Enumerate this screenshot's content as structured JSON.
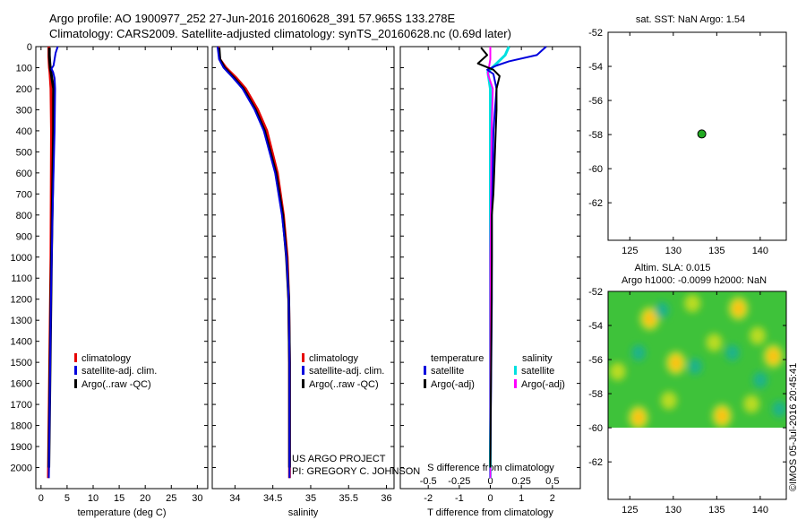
{
  "header": {
    "line1": "Argo profile: AO 1900977_252 27-Jun-2016 20160628_391 57.965S 133.278E",
    "line2": "Climatology: CARS2009. Satellite-adjusted climatology: synTS_20160628.nc (0.69d later)"
  },
  "credits": {
    "project": "US ARGO PROJECT",
    "pi": "PI: GREGORY C. JOHNSON"
  },
  "timestamp": "©IMOS 05-Jul-2016 20:45:41",
  "colors": {
    "clim": "#e60000",
    "sat": "#0000dd",
    "argo": "#000000",
    "sal_sat": "#00e0e0",
    "sal_argo": "#ff00ff",
    "marker": "#22aa22"
  },
  "chart_data": [
    {
      "type": "line",
      "id": "temperature",
      "xlabel": "temperature (deg C)",
      "ylabel": "",
      "xlim": [
        -1,
        32
      ],
      "ylim": [
        2100,
        0
      ],
      "xticks": [
        "0",
        "5",
        "10",
        "15",
        "20",
        "25",
        "30"
      ],
      "xtick_values": [
        0,
        5,
        10,
        15,
        20,
        25,
        30
      ],
      "yticks": [
        "0",
        "100",
        "200",
        "300",
        "400",
        "500",
        "600",
        "700",
        "800",
        "900",
        "1000",
        "1100",
        "1200",
        "1300",
        "1400",
        "1500",
        "1600",
        "1700",
        "1800",
        "1900",
        "2000"
      ],
      "ytick_values": [
        0,
        100,
        200,
        300,
        400,
        500,
        600,
        700,
        800,
        900,
        1000,
        1100,
        1200,
        1300,
        1400,
        1500,
        1600,
        1700,
        1800,
        1900,
        2000
      ],
      "legend": [
        "climatology",
        "satellite-adj. clim.",
        "Argo(..raw -QC)"
      ],
      "series": [
        {
          "name": "climatology",
          "depth": [
            0,
            50,
            100,
            120,
            200,
            400,
            1000,
            2050
          ],
          "values": [
            1.5,
            1.5,
            1.6,
            1.7,
            1.9,
            2.0,
            1.9,
            1.4
          ]
        },
        {
          "name": "Argo(..raw -QC)",
          "depth": [
            5,
            40,
            80,
            105,
            120,
            200,
            400,
            1000,
            2000
          ],
          "values": [
            1.6,
            1.6,
            1.7,
            1.8,
            1.9,
            2.4,
            2.4,
            2.0,
            1.5
          ]
        },
        {
          "name": "satellite-adj. clim.",
          "depth": [
            0,
            30,
            60,
            90,
            105,
            120,
            150,
            200,
            400,
            800,
            1200,
            2050
          ],
          "values": [
            3.2,
            2.8,
            2.6,
            2.4,
            2.0,
            2.3,
            2.6,
            2.7,
            2.6,
            2.2,
            1.9,
            1.5
          ]
        }
      ]
    },
    {
      "type": "line",
      "id": "salinity",
      "xlabel": "salinity",
      "xlim": [
        33.7,
        36.1
      ],
      "ylim": [
        2100,
        0
      ],
      "xticks": [
        "34",
        "34.5",
        "35",
        "35.5",
        "36"
      ],
      "xtick_values": [
        34,
        34.5,
        35,
        35.5,
        36
      ],
      "legend": [
        "climatology",
        "satellite-adj. clim.",
        "Argo(..raw -QC)"
      ],
      "series": [
        {
          "name": "climatology",
          "depth": [
            0,
            60,
            100,
            150,
            200,
            300,
            400,
            600,
            800,
            1000,
            1200,
            1500,
            2050
          ],
          "values": [
            33.78,
            33.8,
            33.88,
            34.02,
            34.14,
            34.3,
            34.42,
            34.56,
            34.64,
            34.69,
            34.71,
            34.72,
            34.72
          ]
        },
        {
          "name": "Argo(..raw -QC)",
          "depth": [
            5,
            60,
            100,
            150,
            200,
            300,
            400,
            600,
            800,
            1000,
            1200,
            1500,
            2000
          ],
          "values": [
            33.79,
            33.8,
            33.86,
            33.99,
            34.11,
            34.27,
            34.39,
            34.54,
            34.63,
            34.68,
            34.71,
            34.72,
            34.72
          ]
        },
        {
          "name": "satellite-adj. clim.",
          "depth": [
            0,
            60,
            100,
            150,
            200,
            300,
            400,
            600,
            800,
            1000,
            1200,
            1500,
            2050
          ],
          "values": [
            33.77,
            33.79,
            33.85,
            33.98,
            34.1,
            34.26,
            34.38,
            34.53,
            34.62,
            34.68,
            34.71,
            34.72,
            34.72
          ]
        }
      ]
    },
    {
      "type": "line",
      "id": "difference",
      "xlabel": "T difference from climatology",
      "top_label": "S difference from climatology",
      "xlim": [
        -2.9,
        2.9
      ],
      "ylim": [
        2100,
        0
      ],
      "xticks": [
        "-2",
        "-1",
        "0",
        "1",
        "2"
      ],
      "xtick_values": [
        -2,
        -1,
        0,
        1,
        2
      ],
      "top_ticks": [
        "-0.5",
        "-0.25",
        "0",
        "0.25",
        "0.5"
      ],
      "top_tick_values": [
        -0.5,
        -0.25,
        0,
        0.25,
        0.5
      ],
      "legend_temperature_title": "temperature",
      "legend_salinity_title": "salinity",
      "legend": [
        "satellite",
        "Argo(-adj)",
        "satellite",
        "Argo(-adj)"
      ],
      "series": [
        {
          "name": "T satellite",
          "depth": [
            0,
            40,
            70,
            90,
            110,
            130,
            200,
            400,
            800,
            1200,
            2000
          ],
          "values": [
            1.8,
            1.5,
            0.6,
            0.2,
            -0.1,
            0.1,
            0.2,
            0.1,
            0.05,
            0.05,
            0.0
          ]
        },
        {
          "name": "T Argo(-adj)",
          "depth": [
            5,
            40,
            80,
            110,
            140,
            200,
            300,
            500,
            700,
            800,
            1000,
            2000
          ],
          "values": [
            -0.3,
            -0.1,
            -0.4,
            0.1,
            0.3,
            0.2,
            0.2,
            0.15,
            0.1,
            0.05,
            0.05,
            0.0
          ]
        },
        {
          "name": "S satellite",
          "depth": [
            0,
            40,
            80,
            120,
            200,
            400,
            800,
            1200,
            2050
          ],
          "values": [
            0.15,
            0.12,
            0.05,
            -0.02,
            0.0,
            0.0,
            0.0,
            0.0,
            0.0
          ]
        },
        {
          "name": "S Argo(-adj)",
          "depth": [
            0,
            60,
            130,
            200,
            400,
            1000,
            2050
          ],
          "values": [
            0.0,
            0.0,
            -0.02,
            0.02,
            0.01,
            0.0,
            0.0
          ]
        }
      ]
    },
    {
      "type": "scatter",
      "id": "position-map",
      "title": "sat. SST: NaN Argo: 1.54",
      "xlim": [
        122.5,
        143
      ],
      "ylim": [
        -64.2,
        -52
      ],
      "xticks": [
        "125",
        "130",
        "135",
        "140"
      ],
      "xtick_values": [
        125,
        130,
        135,
        140
      ],
      "yticks": [
        "-52",
        "-54",
        "-56",
        "-58",
        "-60",
        "-62"
      ],
      "ytick_values": [
        -52,
        -54,
        -56,
        -58,
        -60,
        -62
      ],
      "points": [
        {
          "x": 133.278,
          "y": -57.965
        }
      ]
    },
    {
      "type": "heatmap",
      "id": "sla-map",
      "title_line1": "Altim. SLA: 0.015",
      "title_line2": "Argo h1000: -0.0099 h2000: NaN",
      "xlim": [
        122.5,
        143
      ],
      "ylim": [
        -64.2,
        -52
      ],
      "xticks": [
        "125",
        "130",
        "135",
        "140"
      ],
      "xtick_values": [
        125,
        130,
        135,
        140
      ],
      "yticks": [
        "-52",
        "-54",
        "-56",
        "-58",
        "-60",
        "-62"
      ],
      "ytick_values": [
        -52,
        -54,
        -56,
        -58,
        -60,
        -62
      ],
      "data_ylim": [
        -60,
        -52
      ],
      "blobs": [
        {
          "x": 127.3,
          "y": -53.6,
          "v": "high"
        },
        {
          "x": 137.5,
          "y": -53.0,
          "v": "high"
        },
        {
          "x": 130.3,
          "y": -56.2,
          "v": "high"
        },
        {
          "x": 126.0,
          "y": -59.4,
          "v": "high"
        },
        {
          "x": 135.6,
          "y": -59.3,
          "v": "high"
        },
        {
          "x": 141.5,
          "y": -55.8,
          "v": "high"
        },
        {
          "x": 123.6,
          "y": -56.7,
          "v": "mid"
        },
        {
          "x": 134.7,
          "y": -55.0,
          "v": "mid"
        },
        {
          "x": 139.7,
          "y": -54.6,
          "v": "mid"
        },
        {
          "x": 129.5,
          "y": -58.4,
          "v": "mid"
        },
        {
          "x": 139.0,
          "y": -58.6,
          "v": "mid"
        },
        {
          "x": 132.2,
          "y": -52.7,
          "v": "mid"
        },
        {
          "x": 126.0,
          "y": -55.6,
          "v": "low"
        },
        {
          "x": 132.5,
          "y": -56.4,
          "v": "low"
        },
        {
          "x": 140.0,
          "y": -57.2,
          "v": "low"
        },
        {
          "x": 128.7,
          "y": -53.1,
          "v": "low"
        },
        {
          "x": 136.8,
          "y": -55.6,
          "v": "low"
        },
        {
          "x": 142.2,
          "y": -58.9,
          "v": "low"
        }
      ]
    }
  ]
}
